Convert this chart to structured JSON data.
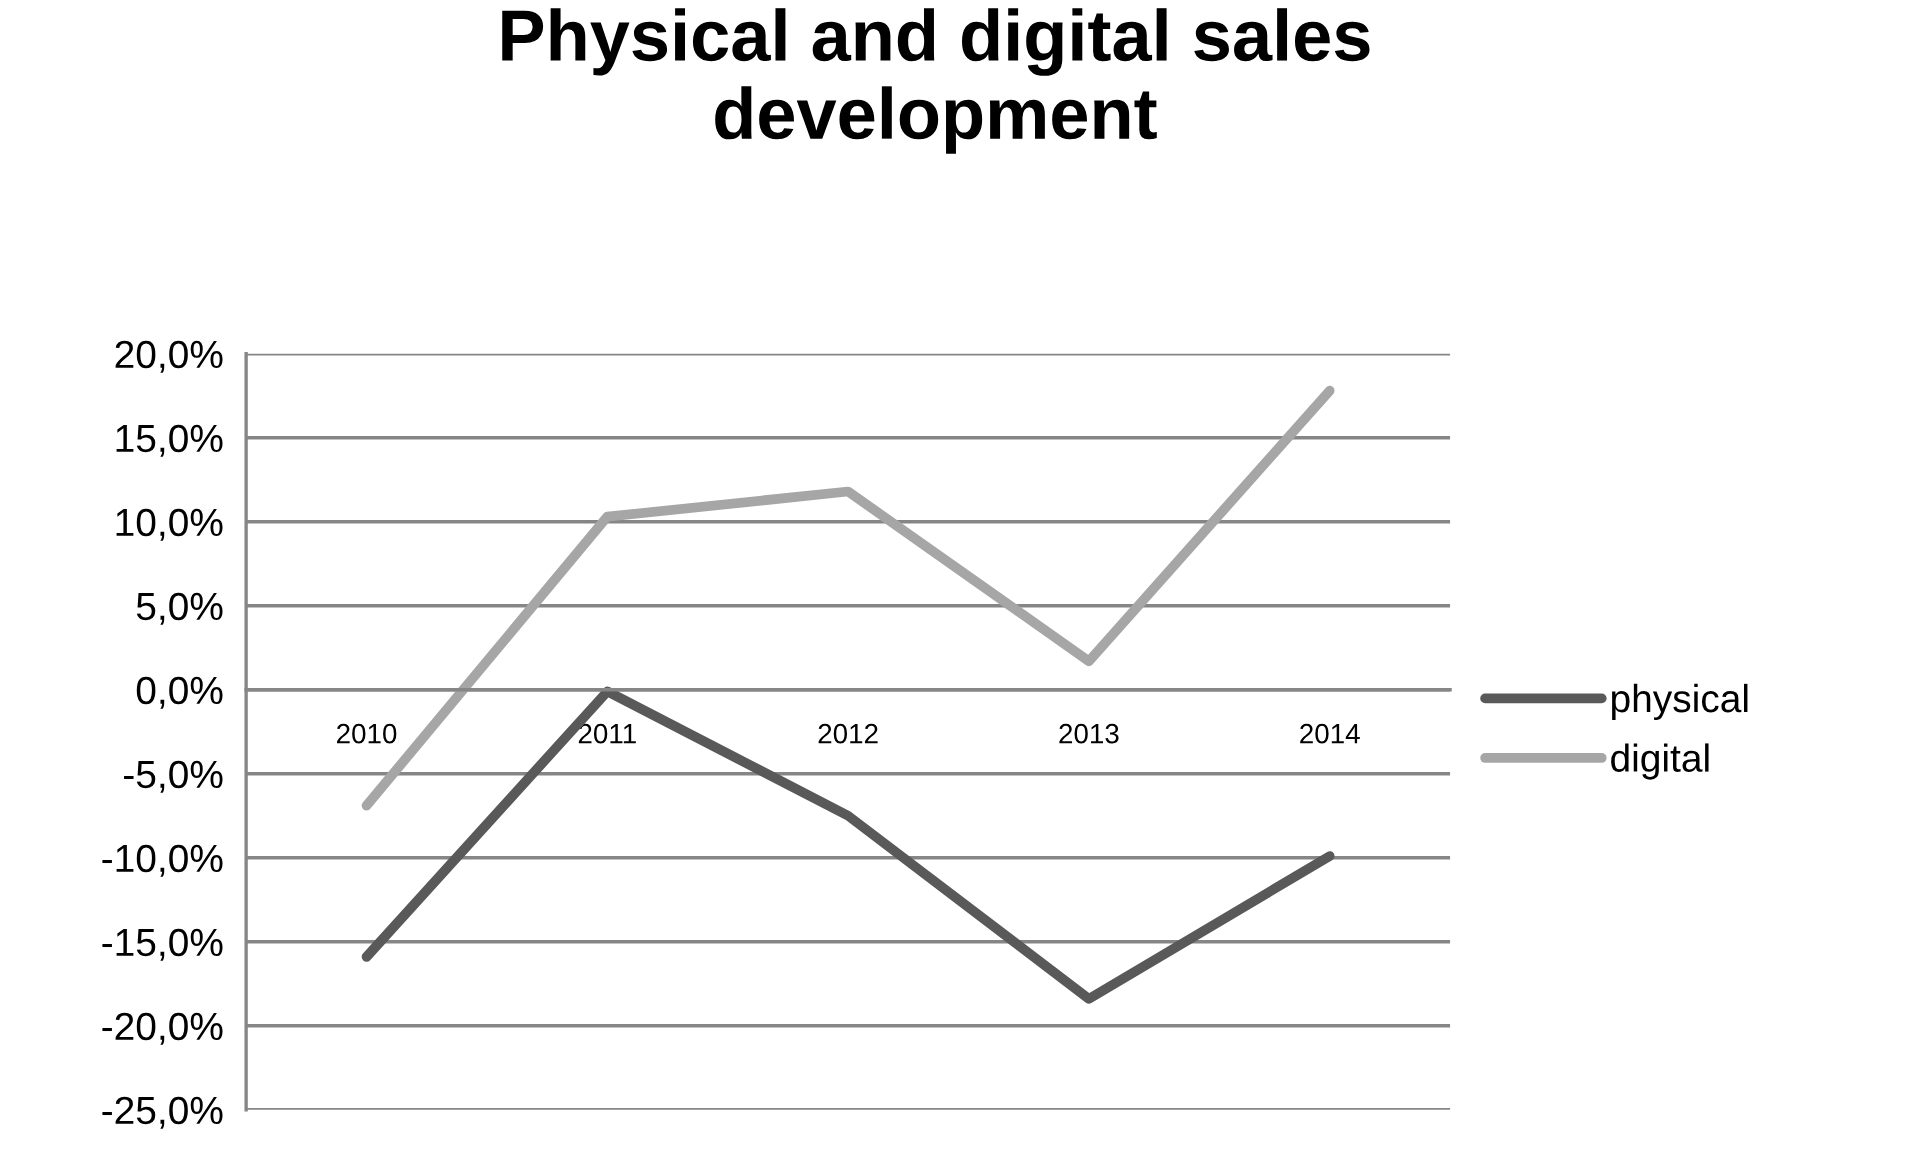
{
  "chart_data": {
    "type": "line",
    "title": "Physical and digital sales development",
    "categories": [
      "2010",
      "2011",
      "2012",
      "2013",
      "2014"
    ],
    "series": [
      {
        "name": "physical",
        "color": "#595959",
        "values": [
          -15.9,
          -0.1,
          -7.5,
          -18.4,
          -9.9
        ]
      },
      {
        "name": "digital",
        "color": "#a6a6a6",
        "values": [
          -6.9,
          10.3,
          11.8,
          1.7,
          17.8
        ]
      }
    ],
    "ylim": [
      -25,
      20
    ],
    "yticks": [
      {
        "value": -25,
        "label": "-25,0%"
      },
      {
        "value": -20,
        "label": "-20,0%"
      },
      {
        "value": -15,
        "label": "-15,0%"
      },
      {
        "value": -10,
        "label": "-10,0%"
      },
      {
        "value": -5,
        "label": "-5,0%"
      },
      {
        "value": 0,
        "label": "0,0%"
      },
      {
        "value": 5,
        "label": "5,0%"
      },
      {
        "value": 10,
        "label": "10,0%"
      },
      {
        "value": 15,
        "label": "15,0%"
      },
      {
        "value": 20,
        "label": "20,0%"
      }
    ],
    "grid": "y",
    "legend": "right",
    "marker": "none",
    "line_style": "solid"
  }
}
